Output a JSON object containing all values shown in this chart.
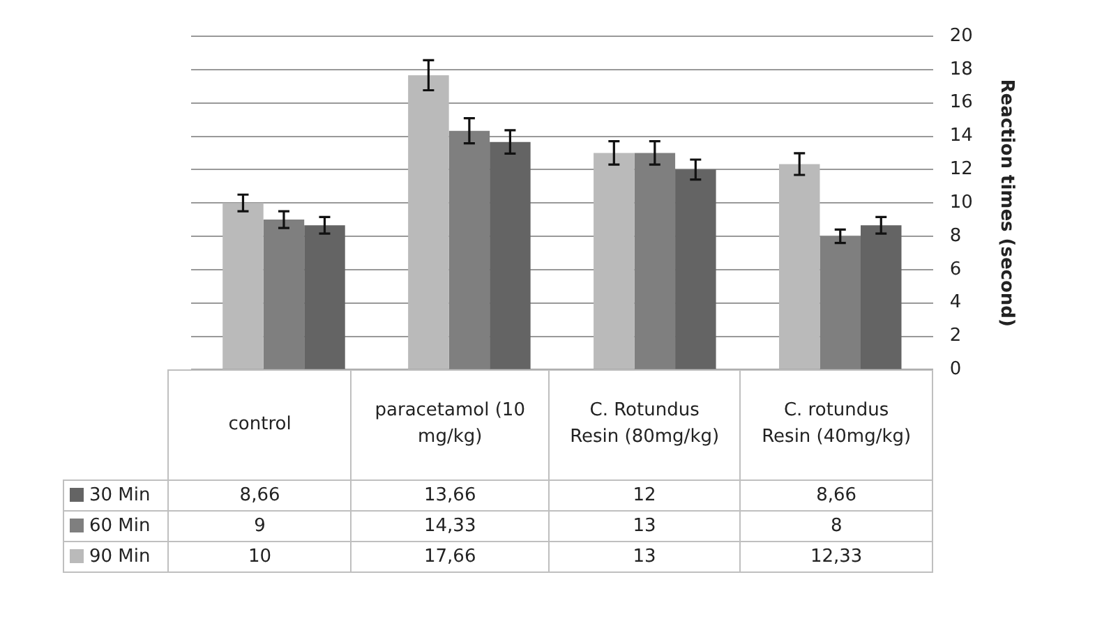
{
  "chart_data": {
    "type": "bar",
    "ylabel": "Reaction times (second)",
    "categories": [
      "control",
      "paracetamol (10 mg/kg)",
      "C. Rotundus Resin (80mg/kg)",
      "C. rotundus Resin (40mg/kg)"
    ],
    "series": [
      {
        "name": "30 Min",
        "color": "#646464",
        "values": [
          8.66,
          13.66,
          12,
          8.66
        ],
        "errors": [
          0.5,
          0.7,
          0.6,
          0.5
        ],
        "value_labels": [
          "8,66",
          "13,66",
          "12",
          "8,66"
        ]
      },
      {
        "name": "60 Min",
        "color": "#7f7f7f",
        "values": [
          9,
          14.33,
          13,
          8
        ],
        "errors": [
          0.5,
          0.75,
          0.7,
          0.4
        ],
        "value_labels": [
          "9",
          "14,33",
          "13",
          "8"
        ]
      },
      {
        "name": "90 Min",
        "color": "#bababa",
        "values": [
          10,
          17.66,
          13,
          12.33
        ],
        "errors": [
          0.5,
          0.9,
          0.7,
          0.65
        ],
        "value_labels": [
          "10",
          "17,66",
          "13",
          "12,33"
        ]
      }
    ],
    "ylim": [
      0,
      20
    ],
    "yticks": [
      0,
      2,
      4,
      6,
      8,
      10,
      12,
      14,
      16,
      18,
      20
    ],
    "grid": "y",
    "legend": "bottom left"
  }
}
